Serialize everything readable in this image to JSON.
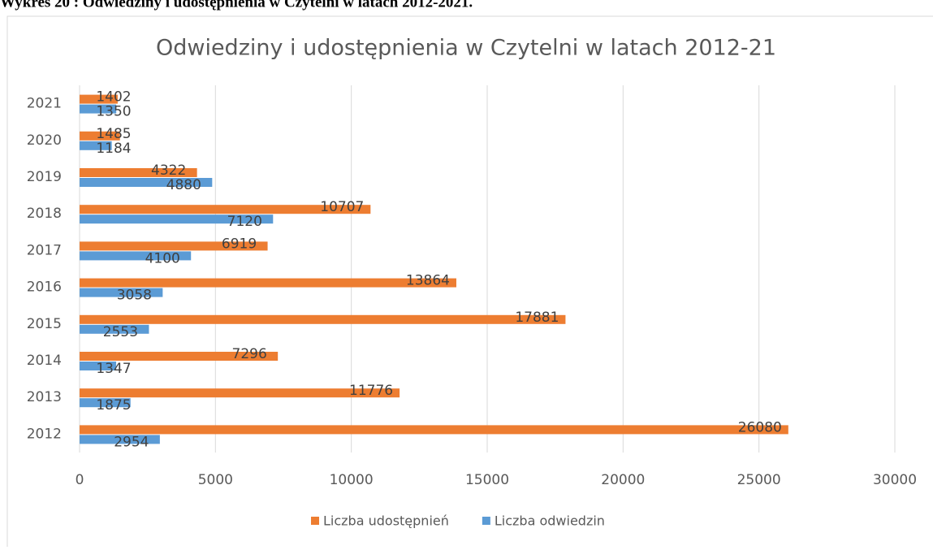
{
  "caption": "Wykres 20 : Odwiedziny i udostępnienia w Czytelni w latach 2012-2021.",
  "chart_data": {
    "type": "bar",
    "orientation": "horizontal",
    "title": "Odwiedziny i udostępnienia w Czytelni w latach 2012-21",
    "categories": [
      "2012",
      "2013",
      "2014",
      "2015",
      "2016",
      "2017",
      "2018",
      "2019",
      "2020",
      "2021"
    ],
    "series": [
      {
        "name": "Liczba udostępnień",
        "color": "#ed7d31",
        "values": [
          26080,
          11776,
          7296,
          17881,
          13864,
          6919,
          10707,
          4322,
          1485,
          1402
        ]
      },
      {
        "name": "Liczba odwiedzin",
        "color": "#5b9bd5",
        "values": [
          2954,
          1875,
          1347,
          2553,
          3058,
          4100,
          7120,
          4880,
          1184,
          1350
        ]
      }
    ],
    "xlim": [
      0,
      30000
    ],
    "xticks": [
      0,
      5000,
      10000,
      15000,
      20000,
      25000,
      30000
    ],
    "grid": true,
    "legend": "bottom",
    "data_labels": true
  }
}
